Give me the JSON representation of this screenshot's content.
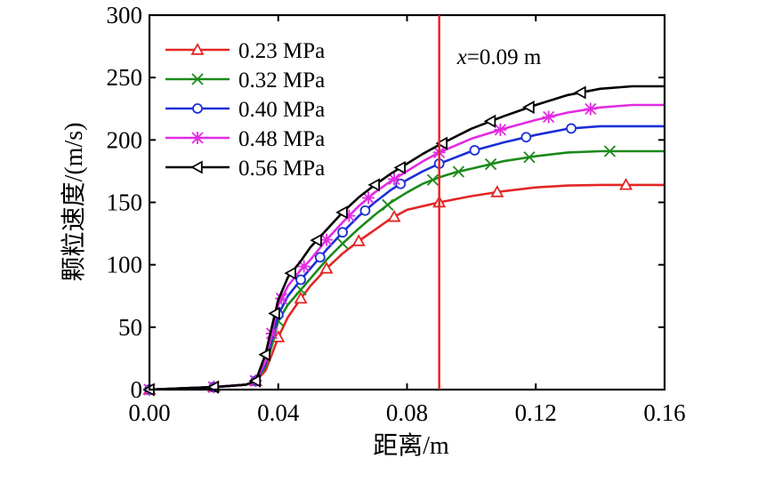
{
  "chart_data": {
    "type": "line",
    "title": "",
    "xlabel": "距离/m",
    "ylabel": "颗粒速度/(m/s)",
    "xlim": [
      0,
      0.16
    ],
    "ylim": [
      0,
      300
    ],
    "x_ticks": [
      0,
      0.04,
      0.08,
      0.12,
      0.16
    ],
    "x_tick_labels": [
      "0.00",
      "0.04",
      "0.08",
      "0.12",
      "0.16"
    ],
    "y_ticks": [
      0,
      50,
      100,
      150,
      200,
      250,
      300
    ],
    "y_tick_labels": [
      "0",
      "50",
      "100",
      "150",
      "200",
      "250",
      "300"
    ],
    "grid": false,
    "legend_position": "top-left",
    "annotation": {
      "x_value": 0.09,
      "color": "#e32626",
      "label_var": "x",
      "label_rest": "=0.09 m"
    },
    "series": [
      {
        "name": "0.23 MPa",
        "color": "#e32626",
        "marker": "triangle-up",
        "x": [
          0,
          0.01,
          0.02,
          0.03,
          0.033,
          0.036,
          0.038,
          0.04,
          0.043,
          0.047,
          0.05,
          0.055,
          0.06,
          0.065,
          0.07,
          0.075,
          0.08,
          0.085,
          0.09,
          0.1,
          0.11,
          0.12,
          0.13,
          0.14,
          0.15,
          0.16
        ],
        "y": [
          0,
          1,
          2,
          4,
          7,
          15,
          28,
          42,
          58,
          73,
          83,
          97,
          109,
          119,
          128,
          137,
          144,
          147,
          150,
          155,
          159,
          162,
          163.5,
          164,
          164,
          164
        ],
        "marker_x": [
          0,
          0.02,
          0.033,
          0.04,
          0.047,
          0.055,
          0.065,
          0.076,
          0.09,
          0.108,
          0.148
        ]
      },
      {
        "name": "0.32 MPa",
        "color": "#1b8a1b",
        "marker": "x",
        "x": [
          0,
          0.01,
          0.02,
          0.03,
          0.033,
          0.036,
          0.038,
          0.04,
          0.043,
          0.047,
          0.05,
          0.055,
          0.06,
          0.065,
          0.07,
          0.075,
          0.08,
          0.085,
          0.09,
          0.095,
          0.1,
          0.11,
          0.12,
          0.13,
          0.14,
          0.15,
          0.16
        ],
        "y": [
          0,
          1,
          2,
          4,
          7,
          18,
          35,
          55,
          68,
          80,
          89,
          104,
          117,
          129,
          140,
          150,
          158,
          165,
          170,
          174,
          177,
          183,
          187,
          190,
          191,
          191,
          191
        ],
        "marker_x": [
          0,
          0.02,
          0.033,
          0.04,
          0.047,
          0.06,
          0.074,
          0.088,
          0.096,
          0.106,
          0.118,
          0.143
        ]
      },
      {
        "name": "0.40 MPa",
        "color": "#1c2fd6",
        "marker": "circle",
        "x": [
          0,
          0.01,
          0.02,
          0.03,
          0.033,
          0.036,
          0.038,
          0.04,
          0.043,
          0.047,
          0.05,
          0.055,
          0.06,
          0.065,
          0.07,
          0.075,
          0.08,
          0.085,
          0.09,
          0.1,
          0.11,
          0.12,
          0.13,
          0.14,
          0.15,
          0.16
        ],
        "y": [
          0,
          1,
          2,
          4,
          7,
          20,
          40,
          60,
          75,
          88,
          97,
          112,
          126,
          139,
          150,
          160,
          168,
          175,
          181,
          191,
          198,
          204,
          209,
          211,
          211,
          211
        ],
        "marker_x": [
          0,
          0.02,
          0.033,
          0.04,
          0.047,
          0.053,
          0.06,
          0.067,
          0.078,
          0.09,
          0.101,
          0.117,
          0.131
        ]
      },
      {
        "name": "0.48 MPa",
        "color": "#e22be2",
        "marker": "star",
        "x": [
          0,
          0.01,
          0.02,
          0.03,
          0.033,
          0.036,
          0.038,
          0.04,
          0.043,
          0.047,
          0.05,
          0.055,
          0.06,
          0.065,
          0.07,
          0.075,
          0.08,
          0.085,
          0.09,
          0.1,
          0.11,
          0.12,
          0.13,
          0.14,
          0.15,
          0.16
        ],
        "y": [
          0,
          1,
          2,
          4,
          7,
          22,
          45,
          68,
          83,
          96,
          104,
          120,
          134,
          147,
          158,
          167,
          175,
          183,
          190,
          201,
          209,
          216,
          222,
          226,
          228,
          228
        ],
        "marker_x": [
          0,
          0.02,
          0.033,
          0.038,
          0.041,
          0.048,
          0.055,
          0.062,
          0.068,
          0.076,
          0.09,
          0.109,
          0.124,
          0.137
        ]
      },
      {
        "name": "0.56 MPa",
        "color": "#000000",
        "marker": "triangle-left",
        "x": [
          0,
          0.01,
          0.02,
          0.03,
          0.033,
          0.036,
          0.038,
          0.04,
          0.043,
          0.047,
          0.05,
          0.055,
          0.06,
          0.065,
          0.07,
          0.075,
          0.08,
          0.085,
          0.09,
          0.1,
          0.11,
          0.12,
          0.13,
          0.14,
          0.15,
          0.16
        ],
        "y": [
          0,
          1,
          2,
          4,
          7,
          28,
          50,
          72,
          90,
          103,
          114,
          128,
          142,
          154,
          164,
          173,
          181,
          189,
          196,
          209,
          219,
          228,
          236,
          241,
          243,
          243
        ],
        "marker_x": [
          0,
          0.02,
          0.033,
          0.036,
          0.039,
          0.044,
          0.052,
          0.06,
          0.07,
          0.078,
          0.091,
          0.106,
          0.118,
          0.134
        ]
      }
    ]
  }
}
